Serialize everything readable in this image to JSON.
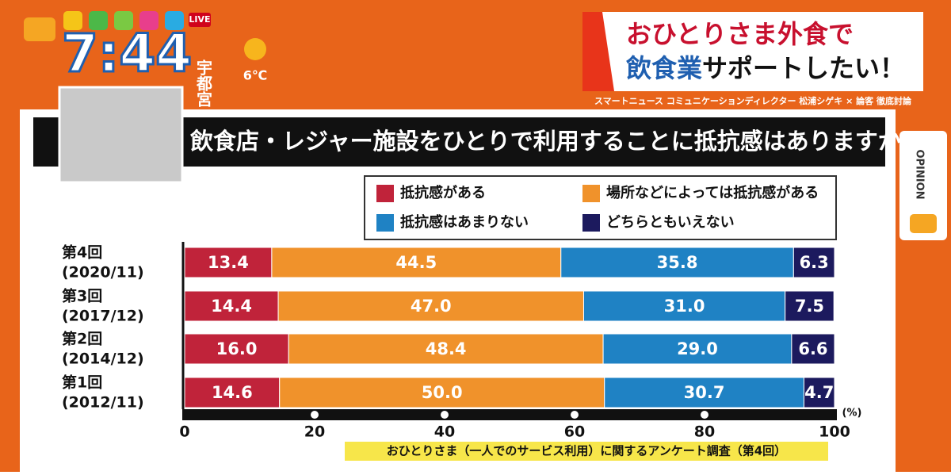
{
  "broadcast": {
    "time": "7:44",
    "location": "宇都宮",
    "temperature": "6℃",
    "live": "LIVE",
    "headline": {
      "line1": "おひとりさま外食で",
      "line2_accent": "飲食業",
      "line2_rest": "サポートしたい！"
    },
    "subline": "スマートニュース コミュニケーションディレクター 松浦シゲキ × 論客 徹底討論",
    "side_tab": "OPINION"
  },
  "chart_data": {
    "type": "stacked-bar-horizontal",
    "title": "Q. 飲食店・レジャー施設をひとりで利用することに抵抗感はありますか？",
    "categories": [
      "第4回",
      "第3回",
      "第2回",
      "第1回"
    ],
    "periods": [
      "(2020/11)",
      "(2017/12)",
      "(2014/12)",
      "(2012/11)"
    ],
    "series": [
      {
        "name": "抵抗感がある",
        "color": "#c0233a",
        "values": [
          13.4,
          14.4,
          16.0,
          14.6
        ],
        "value_labels": [
          "13.4",
          "14.4",
          "16.0",
          "14.6"
        ]
      },
      {
        "name": "場所などによっては抵抗感がある",
        "color": "#f0922b",
        "values": [
          44.5,
          47.0,
          48.4,
          50.0
        ],
        "value_labels": [
          "44.5",
          "47.0",
          "48.4",
          "50.0"
        ]
      },
      {
        "name": "抵抗感はあまりない",
        "color": "#1f82c4",
        "values": [
          35.8,
          31.0,
          29.0,
          30.7
        ],
        "value_labels": [
          "35.8",
          "31.0",
          "29.0",
          "30.7"
        ]
      },
      {
        "name": "どちらともいえない",
        "color": "#1c1a5e",
        "values": [
          6.3,
          7.5,
          6.6,
          4.7
        ],
        "value_labels": [
          "6.3",
          "7.5",
          "6.6",
          "4.7"
        ]
      }
    ],
    "xlim": [
      0,
      100
    ],
    "xticks": [
      0,
      20,
      40,
      60,
      80,
      100
    ],
    "unit": "(%)",
    "source": "おひとりさま（一人でのサービス利用）に関するアンケート調査（第4回）"
  }
}
